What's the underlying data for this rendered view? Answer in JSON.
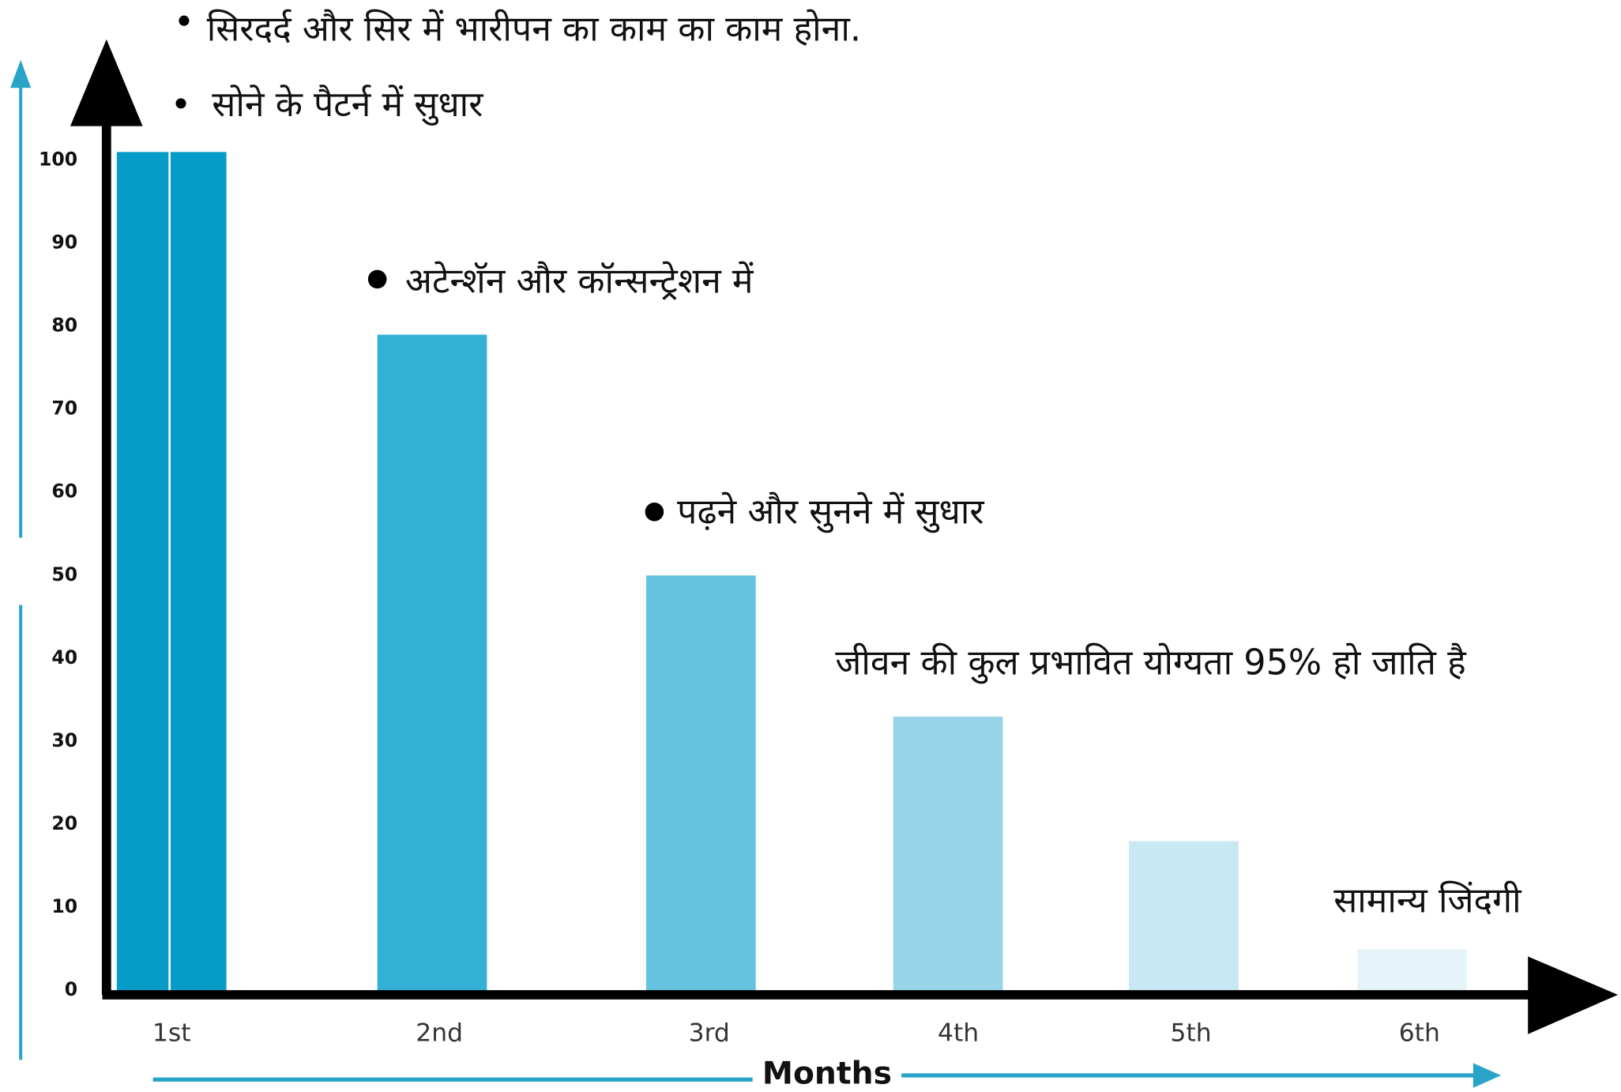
{
  "chart_data": {
    "type": "bar",
    "x_label": "Months",
    "categories": [
      "1st",
      "2nd",
      "3rd",
      "4th",
      "5th",
      "6th"
    ],
    "values": [
      101,
      79,
      50,
      33,
      18,
      5
    ],
    "colors": [
      "#079bc7",
      "#33b0d6",
      "#66c3df",
      "#98d4e8",
      "#c8e8f3",
      "#e6f4f9"
    ],
    "ylim": [
      0,
      100
    ],
    "yticks": [
      0,
      10,
      20,
      30,
      40,
      50,
      60,
      70,
      80,
      90,
      100
    ],
    "grid": false,
    "annotations": [
      "सिरदर्द और सिर में भारीपन का काम का काम होना.",
      "सोने के पैटर्न में सुधार",
      "अटेन्शॅन और कॉन्सन्ट्रेशन में",
      "पढ़ने और सुनने में सुधार",
      "जीवन की कुल प्रभावित योग्यता 95% हो जाति है",
      "सामान्य जिंदगी"
    ]
  }
}
